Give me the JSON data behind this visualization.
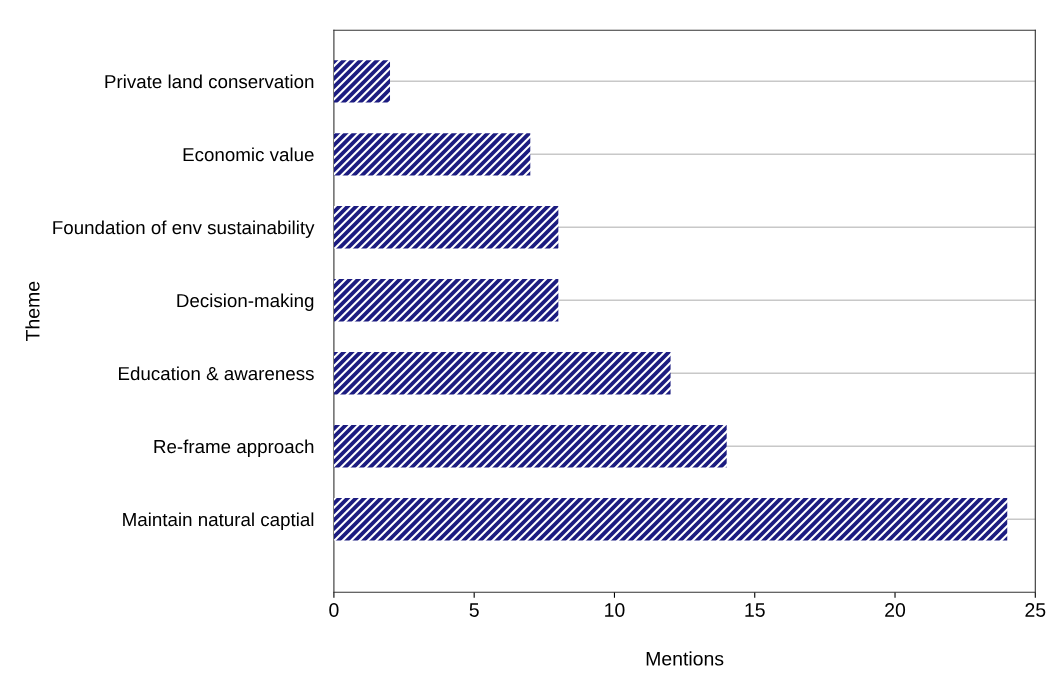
{
  "chart_data": {
    "type": "bar",
    "orientation": "horizontal",
    "categories": [
      "Private land conservation",
      "Economic value",
      "Foundation of env sustainability",
      "Decision-making",
      "Education & awareness",
      "Re-frame approach",
      "Maintain natural captial"
    ],
    "values": [
      2,
      7,
      8,
      8,
      12,
      14,
      24
    ],
    "color": "#1c1c80",
    "xlabel": "Mentions",
    "ylabel": "Theme",
    "xlim": [
      0,
      25
    ],
    "xticks": [
      0,
      5,
      10,
      15,
      20,
      25
    ],
    "grid": "y",
    "legend": false
  }
}
